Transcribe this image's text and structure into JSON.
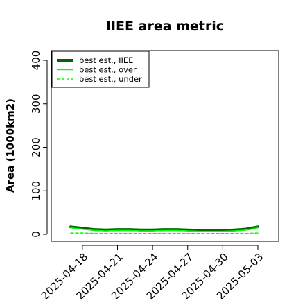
{
  "chart_data": {
    "type": "line",
    "title": "IIEE area metric",
    "xlabel": "",
    "ylabel": "Area (1000km2)",
    "ylim": [
      0,
      400
    ],
    "yticks": [
      0,
      100,
      200,
      300,
      400
    ],
    "x_tick_labels": [
      "2025-04-18",
      "2025-04-21",
      "2025-04-24",
      "2025-04-27",
      "2025-04-30",
      "2025-05-03"
    ],
    "x": [
      "2025-04-17",
      "2025-04-18",
      "2025-04-19",
      "2025-04-20",
      "2025-04-21",
      "2025-04-22",
      "2025-04-23",
      "2025-04-24",
      "2025-04-25",
      "2025-04-26",
      "2025-04-27",
      "2025-04-28",
      "2025-04-29",
      "2025-04-30",
      "2025-05-01",
      "2025-05-02",
      "2025-05-03"
    ],
    "grid": false,
    "legend": "top-left",
    "series": [
      {
        "name": "best est., IIEE",
        "color": "#006400",
        "style": "solid",
        "width": "thick",
        "values": [
          17,
          14,
          11,
          10,
          11,
          11,
          10,
          10,
          11,
          11,
          10,
          9,
          9,
          9,
          10,
          12,
          17
        ]
      },
      {
        "name": "best est., over",
        "color": "#00ff00",
        "style": "solid",
        "width": "thin",
        "values": [
          15,
          12,
          9,
          8,
          9,
          9,
          8,
          8,
          9,
          9,
          8,
          7,
          7,
          7,
          8,
          10,
          15
        ]
      },
      {
        "name": "best est., under",
        "color": "#00ff00",
        "style": "dashed",
        "width": "thin",
        "values": [
          3,
          3,
          2,
          2,
          2,
          2,
          2,
          2,
          2,
          2,
          2,
          2,
          2,
          2,
          2,
          2,
          3
        ]
      }
    ]
  }
}
